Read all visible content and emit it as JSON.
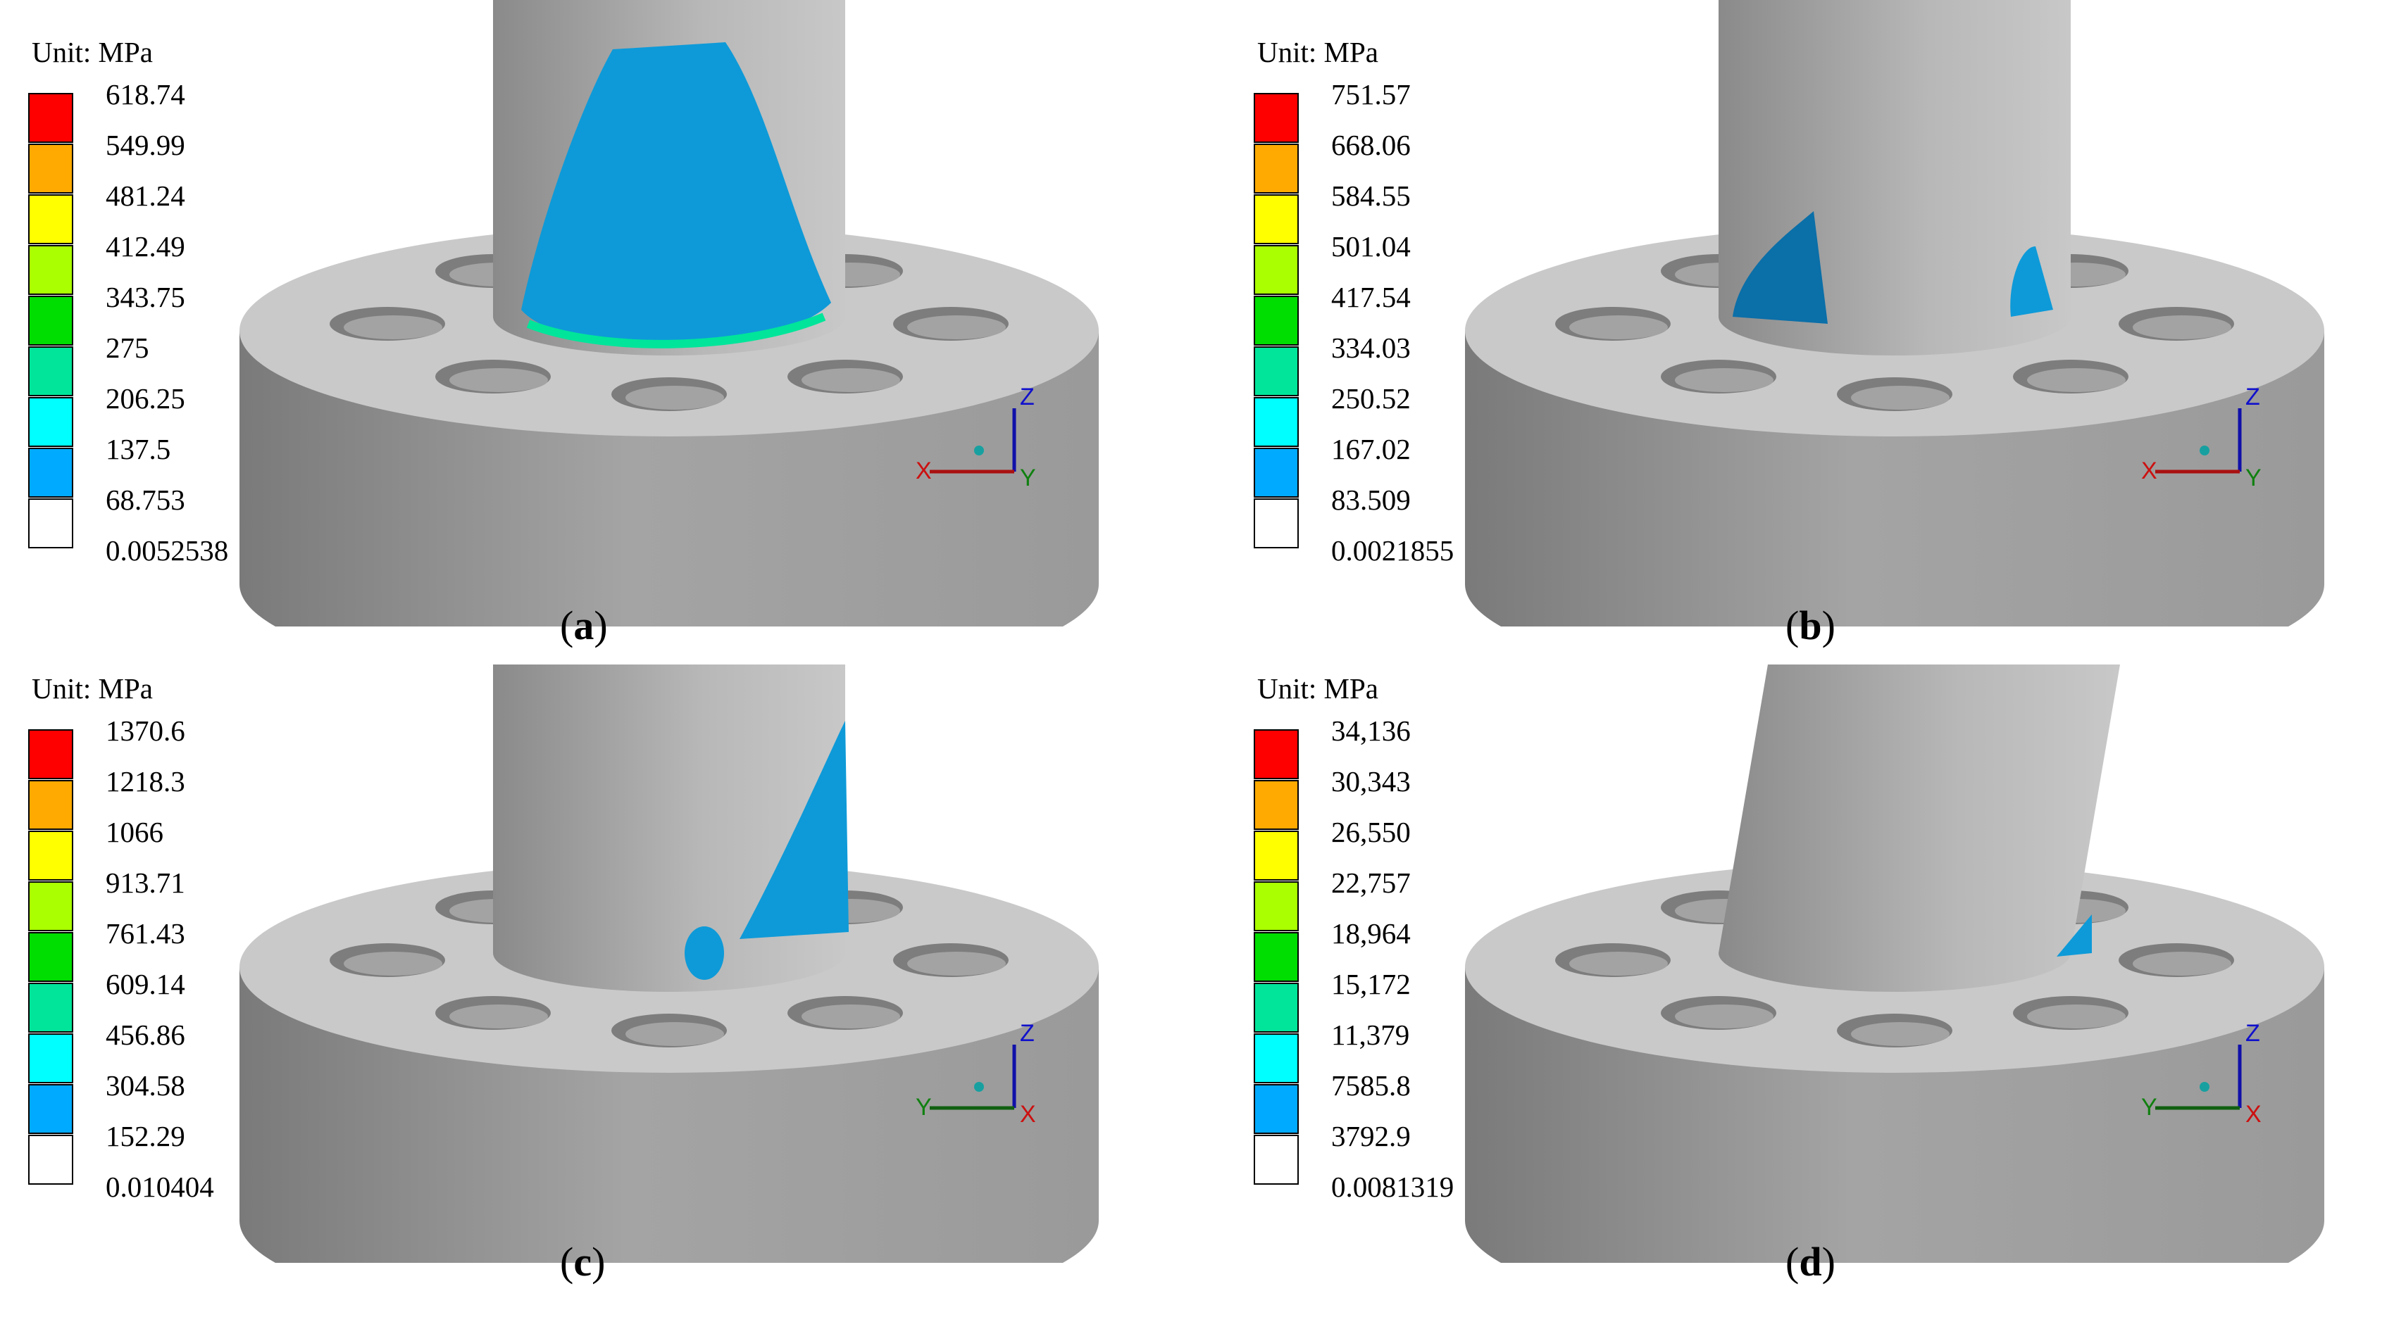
{
  "panels": [
    {
      "id": "a",
      "unit": "Unit: MPa",
      "legend": [
        "618.74",
        "549.99",
        "481.24",
        "412.49",
        "343.75",
        "275",
        "206.25",
        "137.5",
        "68.753",
        "0.0052538"
      ],
      "caption_open": "(",
      "caption_letter": "a",
      "caption_close": ")",
      "triad": {
        "horizontal": "X",
        "vertical": "Z",
        "depth": "Y"
      },
      "stress_region": "large-front"
    },
    {
      "id": "b",
      "unit": "Unit: MPa",
      "legend": [
        "751.57",
        "668.06",
        "584.55",
        "501.04",
        "417.54",
        "334.03",
        "250.52",
        "167.02",
        "83.509",
        "0.0021855"
      ],
      "caption_open": "(",
      "caption_letter": "b",
      "caption_close": ")",
      "triad": {
        "horizontal": "X",
        "vertical": "Z",
        "depth": "Y"
      },
      "stress_region": "two-sides"
    },
    {
      "id": "c",
      "unit": "Unit: MPa",
      "legend": [
        "1370.6",
        "1218.3",
        "1066",
        "913.71",
        "761.43",
        "609.14",
        "456.86",
        "304.58",
        "152.29",
        "0.010404"
      ],
      "caption_open": "(",
      "caption_letter": "c",
      "caption_close": ")",
      "triad": {
        "horizontal": "Y",
        "vertical": "Z",
        "depth": "X"
      },
      "stress_region": "right-side"
    },
    {
      "id": "d",
      "unit": "Unit: MPa",
      "legend": [
        "34,136",
        "30,343",
        "26,550",
        "22,757",
        "18,964",
        "15,172",
        "11,379",
        "7585.8",
        "3792.9",
        "0.0081319"
      ],
      "caption_open": "(",
      "caption_letter": "d",
      "caption_close": ")",
      "triad": {
        "horizontal": "Y",
        "vertical": "Z",
        "depth": "X"
      },
      "stress_region": "small-right"
    }
  ],
  "legend_colors": [
    "#ff0000",
    "#ffaa00",
    "#ffff00",
    "#aaff00",
    "#00dd00",
    "#00e59a",
    "#00ffff",
    "#00aaff",
    "#ffffff"
  ]
}
